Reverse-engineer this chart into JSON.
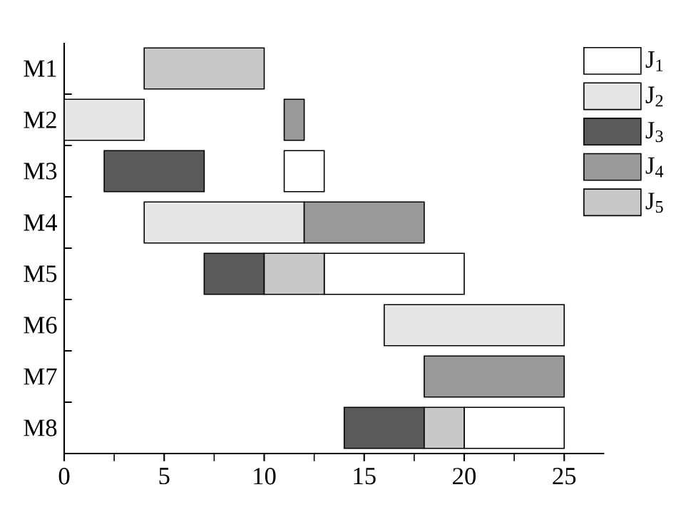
{
  "chart_data": {
    "type": "bar",
    "orientation": "horizontal",
    "categories": [
      "M1",
      "M2",
      "M3",
      "M4",
      "M5",
      "M6",
      "M7",
      "M8"
    ],
    "series": [
      {
        "name": "J$_{1}$",
        "color": "#ffffff",
        "values": [
          null,
          null,
          2,
          null,
          7,
          null,
          null,
          5
        ],
        "base": [
          null,
          null,
          11,
          null,
          13,
          null,
          null,
          20
        ]
      },
      {
        "name": "J$_{2}$",
        "color": "#e6e6e6",
        "values": [
          null,
          4,
          null,
          8,
          null,
          9,
          null,
          null
        ],
        "base": [
          null,
          0,
          null,
          4,
          null,
          16,
          null,
          null
        ]
      },
      {
        "name": "J$_{3}$",
        "color": "#5a5a5a",
        "values": [
          null,
          null,
          5,
          null,
          3,
          null,
          null,
          4
        ],
        "base": [
          null,
          null,
          2,
          null,
          7,
          null,
          null,
          14
        ]
      },
      {
        "name": "J$_{4}$",
        "color": "#9a9a9a",
        "values": [
          null,
          1,
          null,
          6,
          null,
          null,
          7,
          null
        ],
        "base": [
          null,
          11,
          null,
          12,
          null,
          null,
          18,
          null
        ]
      },
      {
        "name": "J$_{5}$",
        "color": "#c8c8c8",
        "values": [
          6,
          null,
          null,
          null,
          3,
          null,
          null,
          2
        ],
        "base": [
          4,
          null,
          null,
          null,
          10,
          null,
          null,
          18
        ]
      }
    ],
    "xlim": [
      0,
      27
    ],
    "xticks": [
      0,
      5,
      10,
      15,
      20,
      25
    ],
    "legend": "top right"
  }
}
